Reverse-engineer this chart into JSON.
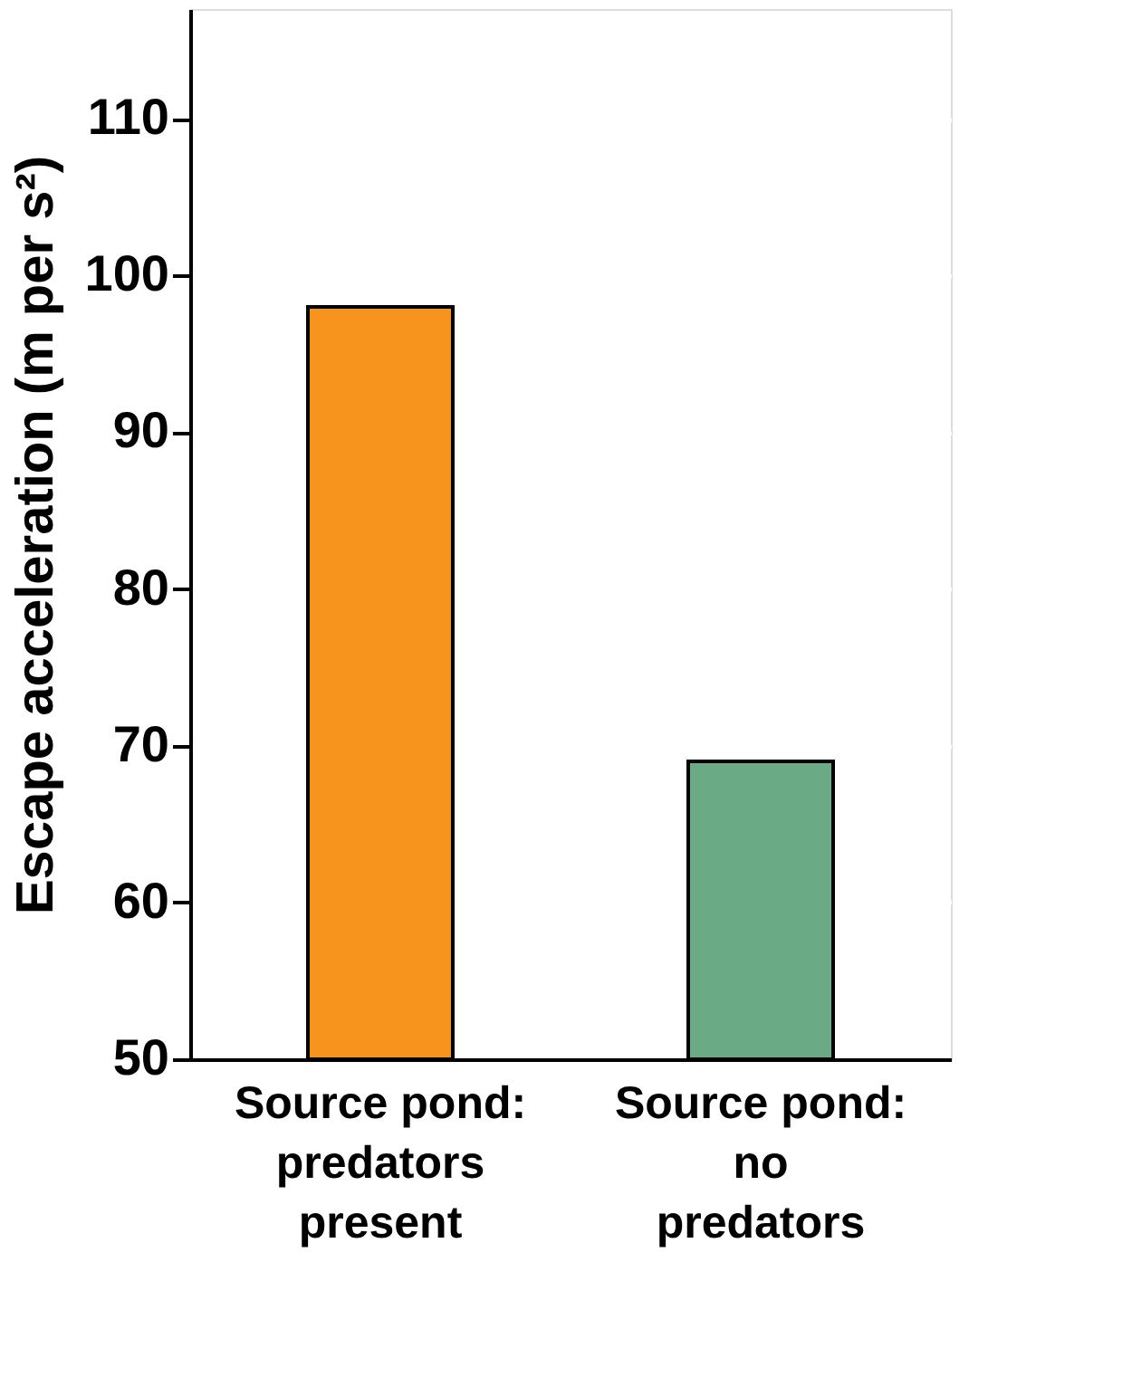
{
  "chart_data": {
    "type": "bar",
    "ylabel": "Escape acceleration (m per s²)",
    "categories": [
      "Source pond: predators present",
      "Source pond: no predators"
    ],
    "values": [
      98,
      69
    ],
    "colors": [
      "#f7941d",
      "#6aaa84"
    ],
    "ylim": [
      50,
      117
    ],
    "yticks": [
      50,
      60,
      70,
      80,
      90,
      100,
      110
    ],
    "grid": "y"
  }
}
